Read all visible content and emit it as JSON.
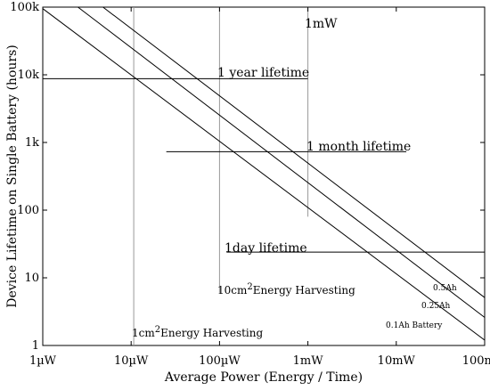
{
  "chart_data": {
    "type": "line",
    "x_scale": "log",
    "y_scale": "log",
    "xlabel": "Average Power (Energy / Time)",
    "ylabel": "Device Lifetime on Single Battery (hours)",
    "xlim": [
      1e-06,
      0.1
    ],
    "ylim": [
      1,
      100000
    ],
    "grid": false,
    "x_ticks": [
      {
        "value": 1e-06,
        "label": "1µW"
      },
      {
        "value": 1e-05,
        "label": "10µW"
      },
      {
        "value": 0.0001,
        "label": "100µW"
      },
      {
        "value": 0.001,
        "label": "1mW"
      },
      {
        "value": 0.01,
        "label": "10mW"
      },
      {
        "value": 0.1,
        "label": "100mW"
      }
    ],
    "y_ticks": [
      {
        "value": 1,
        "label": "1"
      },
      {
        "value": 10,
        "label": "10"
      },
      {
        "value": 100,
        "label": "100"
      },
      {
        "value": 1000,
        "label": "1k"
      },
      {
        "value": 10000,
        "label": "10k"
      },
      {
        "value": 100000,
        "label": "100k"
      }
    ],
    "series": [
      {
        "name": "0.1Ah Battery",
        "points": [
          [
            1e-06,
            95000
          ],
          [
            0.1,
            1.2
          ]
        ]
      },
      {
        "name": "0.25Ah",
        "points": [
          [
            2.5e-06,
            100000
          ],
          [
            0.1,
            2.6
          ]
        ]
      },
      {
        "name": "0.5Ah",
        "points": [
          [
            4.8e-06,
            100000
          ],
          [
            0.1,
            5.1
          ]
        ]
      }
    ],
    "horizontal_lines": [
      {
        "label": "1 year lifetime",
        "y": 8760,
        "x_start": 1e-06,
        "x_end": 0.001
      },
      {
        "label": "1 month lifetime",
        "y": 730,
        "x_start": 2.5e-05,
        "x_end": 0.013
      },
      {
        "label": "1day lifetime",
        "y": 24,
        "x_start": 0.00012,
        "x_end": 0.1
      }
    ],
    "vertical_lines": [
      {
        "label_main": "1cm",
        "label_sup": "2",
        "label_rest": "Energy Harvesting",
        "x": 1.07e-05,
        "y_start": 1,
        "y_end": 100000
      },
      {
        "label_main": "10cm",
        "label_sup": "2",
        "label_rest": "Energy Harvesting",
        "x": 0.0001,
        "y_start": 6,
        "y_end": 100000
      },
      {
        "label_main": "1mW",
        "x": 0.001,
        "y_start": 80,
        "y_end": 100000
      }
    ]
  }
}
